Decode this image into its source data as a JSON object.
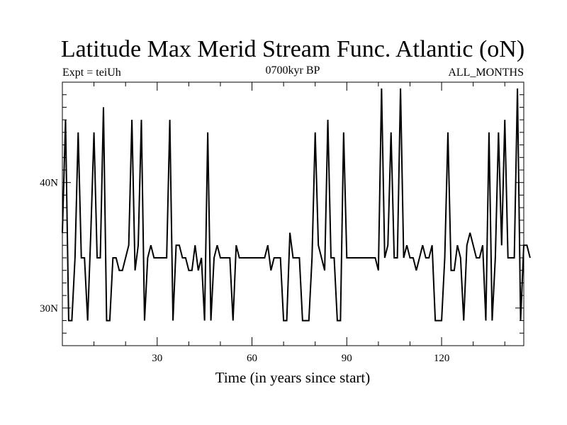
{
  "chart_data": {
    "type": "line",
    "title": "Latitude Max Merid Stream Func. Atlantic (oN)",
    "subtitle_left": "Expt = teiUh",
    "subtitle_center": "0700kyr BP",
    "subtitle_right": "ALL_MONTHS",
    "xlabel": "Time (in years since start)",
    "ylabel": "",
    "xlim": [
      0,
      146
    ],
    "ylim": [
      27,
      48
    ],
    "x_ticks": [
      30,
      60,
      90,
      120
    ],
    "x_tick_labels": [
      "30",
      "60",
      "90",
      "120"
    ],
    "y_ticks": [
      30,
      40
    ],
    "y_tick_labels": [
      "30N",
      "40N"
    ],
    "y_minor_step": 1,
    "x_minor_step": 10,
    "grid": false,
    "line_color": "#000000",
    "x_start": 0,
    "x_step": 1,
    "values": [
      36,
      45,
      29,
      29,
      34,
      44,
      34,
      34,
      29,
      36,
      44,
      34,
      34,
      46,
      29,
      29,
      34,
      34,
      33,
      33,
      34,
      35,
      45,
      33,
      35,
      45,
      29,
      34,
      35,
      34,
      34,
      34,
      34,
      34,
      45,
      29,
      35,
      35,
      34,
      34,
      33,
      33,
      35,
      33,
      34,
      29,
      44,
      29,
      34,
      35,
      34,
      34,
      34,
      34,
      29,
      35,
      34,
      34,
      34,
      34,
      34,
      34,
      34,
      34,
      34,
      35,
      33,
      34,
      34,
      34,
      29,
      29,
      36,
      34,
      34,
      34,
      29,
      29,
      29,
      34,
      44,
      35,
      34,
      33,
      45,
      34,
      34,
      29,
      29,
      44,
      34,
      34,
      34,
      34,
      34,
      34,
      34,
      34,
      34,
      34,
      33,
      47.5,
      34,
      35,
      44,
      34,
      34,
      47.5,
      34,
      35,
      34,
      34,
      33,
      34,
      35,
      34,
      34,
      35,
      29,
      29,
      29,
      34,
      44,
      33,
      33,
      35,
      34,
      29,
      35,
      36,
      35,
      34,
      34,
      35,
      29,
      44,
      29,
      34,
      44,
      35,
      45,
      34,
      34,
      34,
      47.5,
      29,
      35,
      35,
      34
    ]
  }
}
